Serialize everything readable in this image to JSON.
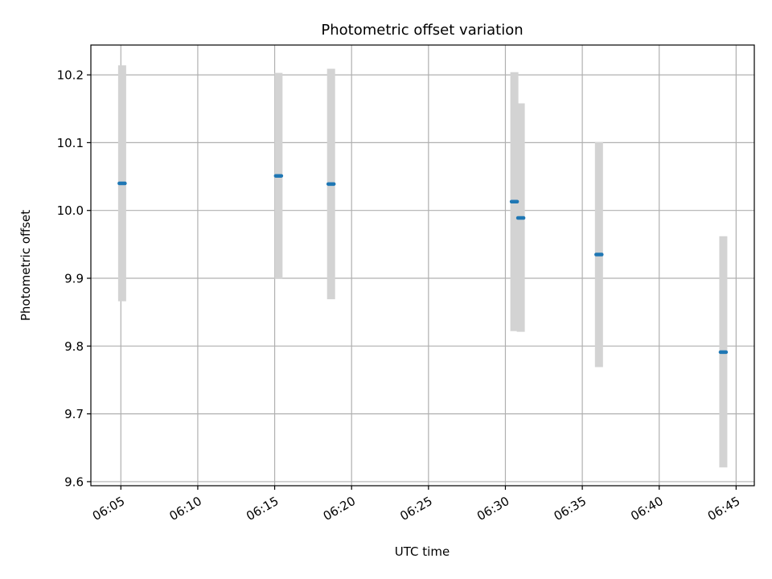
{
  "chart_data": {
    "type": "scatter",
    "title": "Photometric offset variation",
    "xlabel": "UTC time",
    "ylabel": "Photometric offset",
    "grid": true,
    "legend": "none",
    "x_ticks": [
      "06:05",
      "06:10",
      "06:15",
      "06:20",
      "06:25",
      "06:30",
      "06:35",
      "06:40",
      "06:45"
    ],
    "y_ticks": [
      "9.6",
      "9.7",
      "9.8",
      "9.9",
      "10.0",
      "10.1",
      "10.2"
    ],
    "xlim": [
      "06:03:03",
      "06:46:11"
    ],
    "ylim": [
      9.594,
      10.244
    ],
    "colors": {
      "point": "#1f77b4",
      "error_bar": "#d3d3d3",
      "grid": "#b0b0b0",
      "axes": "#000000"
    },
    "points": [
      {
        "x": "06:05:05",
        "y": 10.04,
        "ylow": 9.866,
        "yhigh": 10.214
      },
      {
        "x": "06:15:15",
        "y": 10.051,
        "ylow": 9.899,
        "yhigh": 10.203
      },
      {
        "x": "06:18:40",
        "y": 10.039,
        "ylow": 9.869,
        "yhigh": 10.209
      },
      {
        "x": "06:30:35",
        "y": 10.013,
        "ylow": 9.822,
        "yhigh": 10.204
      },
      {
        "x": "06:31:00",
        "y": 9.989,
        "ylow": 9.821,
        "yhigh": 10.158
      },
      {
        "x": "06:36:05",
        "y": 9.935,
        "ylow": 9.769,
        "yhigh": 10.101
      },
      {
        "x": "06:44:10",
        "y": 9.791,
        "ylow": 9.621,
        "yhigh": 9.962
      }
    ]
  }
}
